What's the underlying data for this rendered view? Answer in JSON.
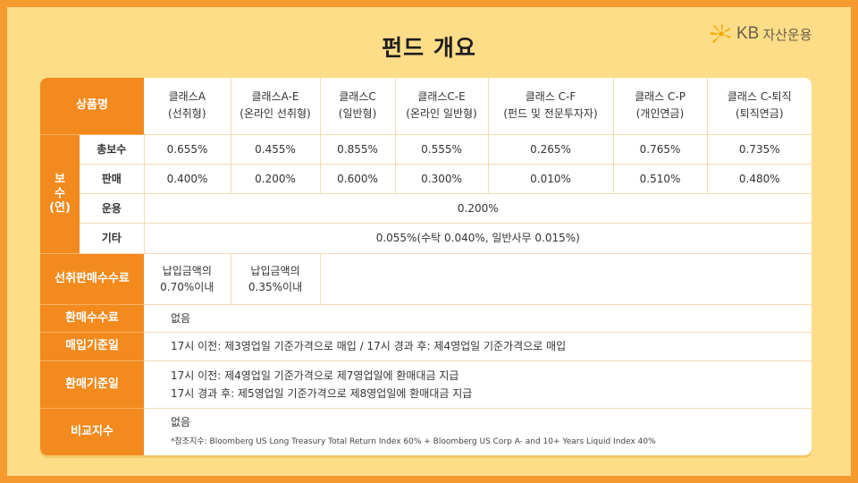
{
  "title": "펀드 개요",
  "logo": {
    "brand": "KB",
    "company": "자산운용"
  },
  "colors": {
    "accent": "#f28a1e",
    "background": "#fedd88",
    "frame": "#f59a2f"
  },
  "table": {
    "corner": "상품명",
    "classes": [
      {
        "name": "클래스A",
        "sub": "(선취형)"
      },
      {
        "name": "클래스A-E",
        "sub": "(온라인 선취형)"
      },
      {
        "name": "클래스C",
        "sub": "(일반형)"
      },
      {
        "name": "클래스C-E",
        "sub": "(온라인 일반형)"
      },
      {
        "name": "클래스 C-F",
        "sub": "(펀드 및 전문투자자)"
      },
      {
        "name": "클래스 C-P",
        "sub": "(개인연금)"
      },
      {
        "name": "클래스 C-퇴직",
        "sub": "(퇴직연금)"
      }
    ],
    "fee_group_label": [
      "보",
      "수",
      "(연)"
    ],
    "fees": {
      "total": {
        "label": "총보수",
        "values": [
          "0.655%",
          "0.455%",
          "0.855%",
          "0.555%",
          "0.265%",
          "0.765%",
          "0.735%"
        ]
      },
      "sales": {
        "label": "판매",
        "values": [
          "0.400%",
          "0.200%",
          "0.600%",
          "0.300%",
          "0.010%",
          "0.510%",
          "0.480%"
        ]
      },
      "management": {
        "label": "운용",
        "value": "0.200%"
      },
      "other": {
        "label": "기타",
        "value": "0.055%(수탁 0.040%, 일반사무 0.015%)"
      }
    },
    "front_load": {
      "label": "선취판매수수료",
      "values": [
        {
          "line1": "납입금액의",
          "line2": "0.70%이내"
        },
        {
          "line1": "납입금액의",
          "line2": "0.35%이내"
        }
      ]
    },
    "redemption_fee": {
      "label": "환매수수료",
      "value": "없음"
    },
    "purchase_date": {
      "label": "매입기준일",
      "value": "17시 이전: 제3영업일 기준가격으로 매입 / 17시 경과 후: 제4영업일 기준가격으로 매입"
    },
    "redemption_date": {
      "label": "환매기준일",
      "line1": "17시 이전: 제4영업일 기준가격으로 제7영업일에 환매대금 지급",
      "line2": "17시 경과 후: 제5영업일 기준가격으로 제8영업일에 환매대금 지급"
    },
    "benchmark": {
      "label": "비교지수",
      "value": "없음",
      "note": "*참조지수: Bloomberg US Long Treasury Total Return Index 60% + Bloomberg US Corp A- and 10+ Years Liquid Index 40%"
    }
  }
}
